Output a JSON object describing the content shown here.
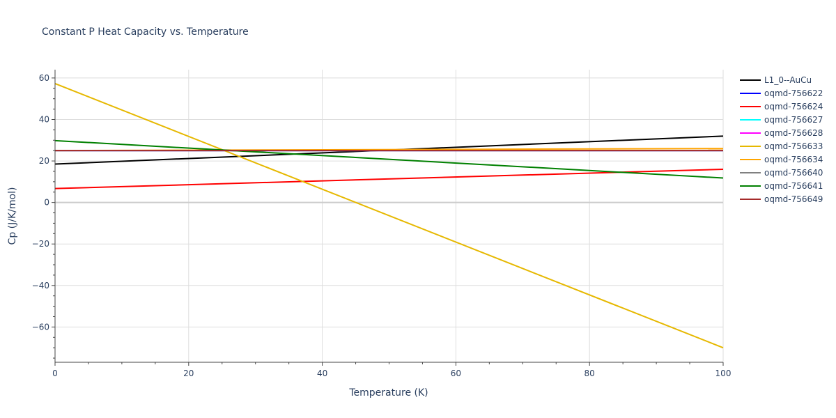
{
  "chart_data": {
    "type": "line",
    "title": "Constant P Heat Capacity vs. Temperature",
    "xlabel": "Temperature (K)",
    "ylabel": "Cp (J/K/mol)",
    "xlim": [
      0,
      100
    ],
    "ylim": [
      -77,
      64
    ],
    "xticks": [
      0,
      20,
      40,
      60,
      80,
      100
    ],
    "xtick_labels": [
      "0",
      "20",
      "40",
      "60",
      "80",
      "100"
    ],
    "yticks": [
      60,
      40,
      20,
      0,
      -20,
      -40,
      -60
    ],
    "ytick_labels": [
      "60",
      "40",
      "20",
      "0",
      "−20",
      "−40",
      "−60"
    ],
    "grid": true,
    "legend_position": "right",
    "series": [
      {
        "name": "L1_0--AuCu",
        "color": "#000000",
        "x": [
          0,
          100
        ],
        "y": [
          18.5,
          32.0
        ]
      },
      {
        "name": "oqmd-756622",
        "color": "#0000ff",
        "x": [
          0,
          100
        ],
        "y": [
          25.0,
          25.0
        ]
      },
      {
        "name": "oqmd-756624",
        "color": "#ff0000",
        "x": [
          0,
          100
        ],
        "y": [
          6.7,
          16.0
        ]
      },
      {
        "name": "oqmd-756627",
        "color": "#00ffff",
        "x": [
          0,
          100
        ],
        "y": [
          25.0,
          25.0
        ]
      },
      {
        "name": "oqmd-756628",
        "color": "#ff00ff",
        "x": [
          0,
          100
        ],
        "y": [
          25.0,
          25.0
        ]
      },
      {
        "name": "oqmd-756633",
        "color": "#e6b800",
        "x": [
          0,
          100
        ],
        "y": [
          57.3,
          -70.0
        ]
      },
      {
        "name": "oqmd-756634",
        "color": "#ffa500",
        "x": [
          0,
          100
        ],
        "y": [
          25.0,
          26.0
        ]
      },
      {
        "name": "oqmd-756640",
        "color": "#808080",
        "x": [
          0,
          100
        ],
        "y": [
          25.0,
          25.0
        ]
      },
      {
        "name": "oqmd-756641",
        "color": "#008000",
        "x": [
          0,
          100
        ],
        "y": [
          29.8,
          11.8
        ]
      },
      {
        "name": "oqmd-756649",
        "color": "#a52a2a",
        "x": [
          0,
          100
        ],
        "y": [
          25.0,
          25.0
        ]
      }
    ]
  }
}
